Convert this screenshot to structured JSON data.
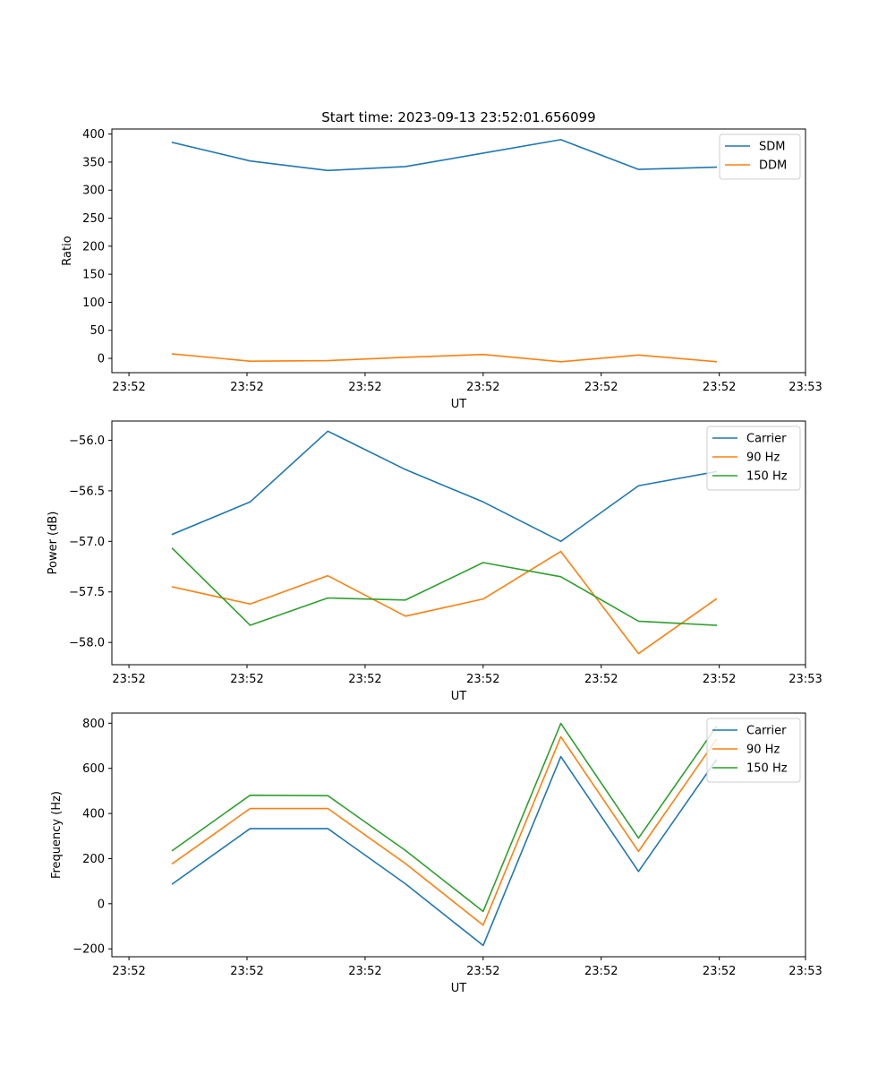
{
  "figure_title": "Start time: 2023-09-13 23:52:01.656099",
  "colors": {
    "blue": "#1f77b4",
    "orange": "#ff7f0e",
    "green": "#2ca02c"
  },
  "chart_data": [
    {
      "type": "line",
      "title": "Start time: 2023-09-13 23:52:01.656099",
      "xlabel": "UT",
      "ylabel": "Ratio",
      "x": [
        1,
        2,
        3,
        4,
        5,
        6,
        7,
        8
      ],
      "xlim": [
        0.22,
        9.15
      ],
      "x_ticks": [
        0.44,
        1.96,
        3.48,
        5.0,
        6.52,
        8.04,
        9.56
      ],
      "x_tick_labels": [
        "23:52",
        "23:52",
        "23:52",
        "23:52",
        "23:52",
        "23:52",
        "23:53"
      ],
      "ylim": [
        -25.5,
        409
      ],
      "y_ticks": [
        0,
        50,
        100,
        150,
        200,
        250,
        300,
        350,
        400
      ],
      "y_tick_labels": [
        "0",
        "50",
        "100",
        "150",
        "200",
        "250",
        "300",
        "350",
        "400"
      ],
      "legend_position": "top-right",
      "series": [
        {
          "name": "SDM",
          "color": "#1f77b4",
          "values": [
            385,
            352,
            335,
            342,
            366,
            390,
            337,
            341
          ]
        },
        {
          "name": "DDM",
          "color": "#ff7f0e",
          "values": [
            8,
            -5,
            -4,
            2,
            7,
            -6,
            6,
            -6
          ]
        }
      ]
    },
    {
      "type": "line",
      "title": "",
      "xlabel": "UT",
      "ylabel": "Power (dB)",
      "x": [
        1,
        2,
        3,
        4,
        5,
        6,
        7,
        8
      ],
      "xlim": [
        0.22,
        9.15
      ],
      "x_ticks": [
        0.44,
        1.96,
        3.48,
        5.0,
        6.52,
        8.04,
        9.56
      ],
      "x_tick_labels": [
        "23:52",
        "23:52",
        "23:52",
        "23:52",
        "23:52",
        "23:52",
        "23:53"
      ],
      "ylim": [
        -58.22,
        -55.81
      ],
      "y_ticks": [
        -58.0,
        -57.5,
        -57.0,
        -56.5,
        -56.0
      ],
      "y_tick_labels": [
        "−58.0",
        "−57.5",
        "−57.0",
        "−56.5",
        "−56.0"
      ],
      "legend_position": "top-right",
      "series": [
        {
          "name": "Carrier",
          "color": "#1f77b4",
          "values": [
            -56.93,
            -56.61,
            -55.91,
            -56.29,
            -56.61,
            -57.0,
            -56.45,
            -56.31
          ]
        },
        {
          "name": "90 Hz",
          "color": "#ff7f0e",
          "values": [
            -57.45,
            -57.62,
            -57.34,
            -57.74,
            -57.57,
            -57.1,
            -58.11,
            -57.57
          ]
        },
        {
          "name": "150 Hz",
          "color": "#2ca02c",
          "values": [
            -57.07,
            -57.83,
            -57.56,
            -57.58,
            -57.21,
            -57.35,
            -57.79,
            -57.83
          ]
        }
      ]
    },
    {
      "type": "line",
      "title": "",
      "xlabel": "UT",
      "ylabel": "Frequency (Hz)",
      "x": [
        1,
        2,
        3,
        4,
        5,
        6,
        7,
        8
      ],
      "xlim": [
        0.22,
        9.15
      ],
      "x_ticks": [
        0.44,
        1.96,
        3.48,
        5.0,
        6.52,
        8.04,
        9.56
      ],
      "x_tick_labels": [
        "23:52",
        "23:52",
        "23:52",
        "23:52",
        "23:52",
        "23:52",
        "23:53"
      ],
      "ylim": [
        -235,
        845
      ],
      "y_ticks": [
        -200,
        0,
        200,
        400,
        600,
        800
      ],
      "y_tick_labels": [
        "−200",
        "0",
        "200",
        "400",
        "600",
        "800"
      ],
      "legend_position": "top-right",
      "series": [
        {
          "name": "Carrier",
          "color": "#1f77b4",
          "values": [
            88,
            333,
            333,
            88,
            -185,
            652,
            143,
            637
          ]
        },
        {
          "name": "90 Hz",
          "color": "#ff7f0e",
          "values": [
            178,
            422,
            422,
            178,
            -95,
            740,
            232,
            727
          ]
        },
        {
          "name": "150 Hz",
          "color": "#2ca02c",
          "values": [
            236,
            481,
            479,
            236,
            -34,
            799,
            291,
            784
          ]
        }
      ]
    }
  ]
}
